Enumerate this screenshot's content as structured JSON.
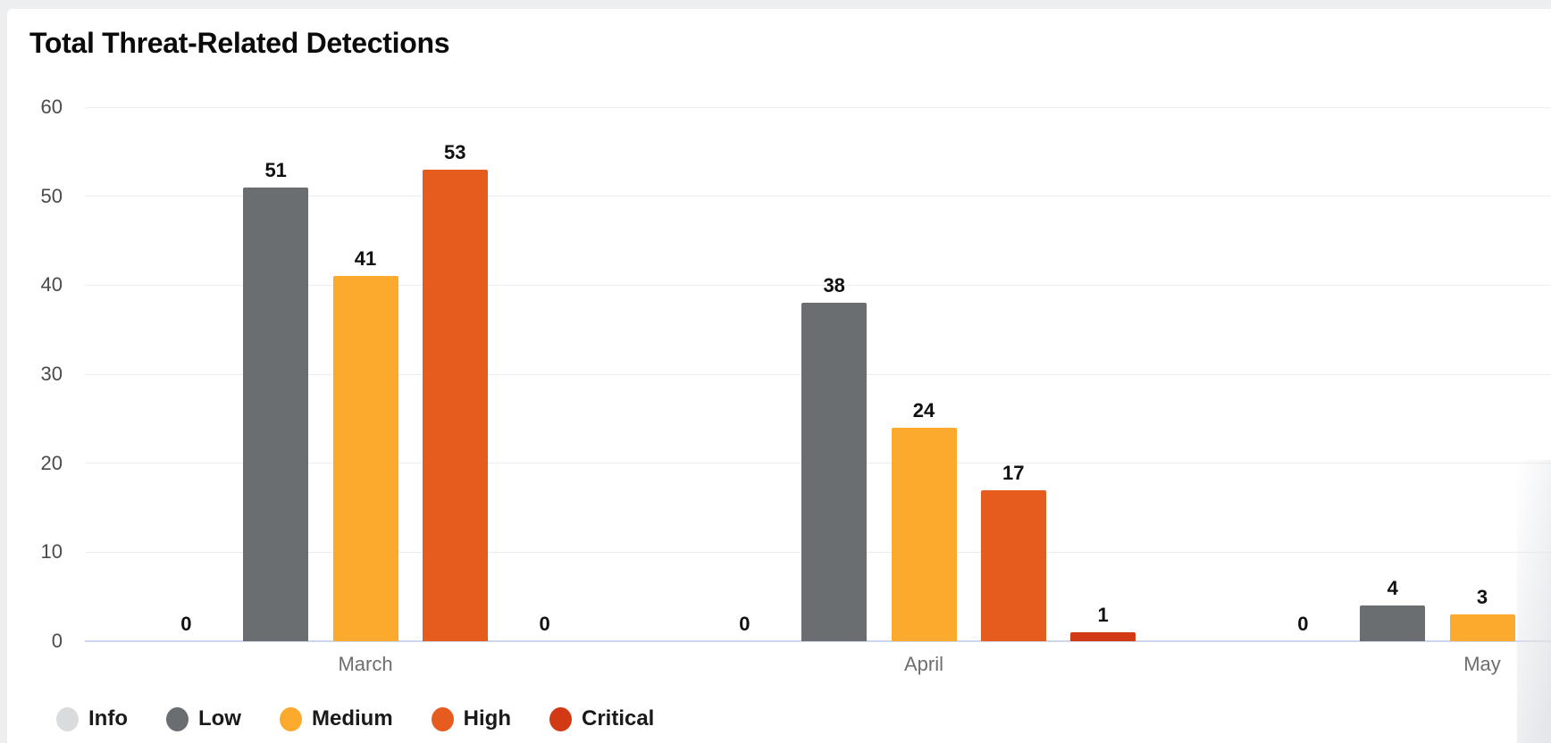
{
  "chart_data": {
    "type": "bar",
    "title": "Total Threat-Related Detections",
    "categories": [
      "March",
      "April",
      "May"
    ],
    "series": [
      {
        "name": "Info",
        "color": "#d9dbdd",
        "values": [
          0,
          0,
          0
        ]
      },
      {
        "name": "Low",
        "color": "#6b6e71",
        "values": [
          51,
          38,
          4
        ]
      },
      {
        "name": "Medium",
        "color": "#fcaa2e",
        "values": [
          41,
          24,
          3
        ]
      },
      {
        "name": "High",
        "color": "#e65c1e",
        "values": [
          53,
          17,
          null
        ]
      },
      {
        "name": "Critical",
        "color": "#d23a15",
        "values": [
          0,
          1,
          null
        ]
      }
    ],
    "xlabel": "",
    "ylabel": "",
    "ylim": [
      0,
      60
    ],
    "yticks": [
      0,
      10,
      20,
      30,
      40,
      50,
      60
    ],
    "grid": true,
    "value_labels": true,
    "legend_position": "bottom"
  }
}
